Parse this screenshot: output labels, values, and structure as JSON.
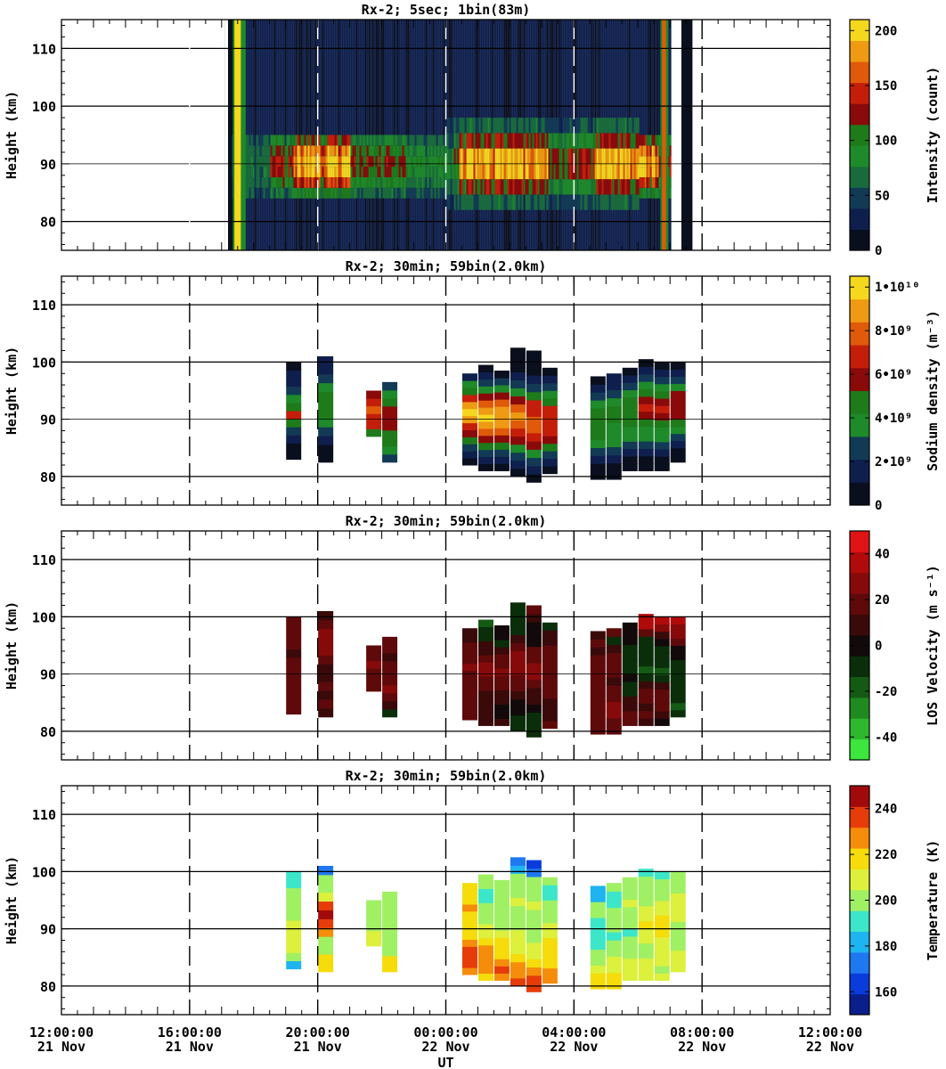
{
  "figure": {
    "xlabel": "UT",
    "x_ticks": [
      {
        "time": "12:00:00",
        "date": "21 Nov"
      },
      {
        "time": "16:00:00",
        "date": "21 Nov"
      },
      {
        "time": "20:00:00",
        "date": "21 Nov"
      },
      {
        "time": "00:00:00",
        "date": "22 Nov"
      },
      {
        "time": "04:00:00",
        "date": "22 Nov"
      },
      {
        "time": "08:00:00",
        "date": "22 Nov"
      },
      {
        "time": "12:00:00",
        "date": "22 Nov"
      }
    ]
  },
  "chart_data": [
    {
      "type": "heatmap",
      "title": "Rx-2;  5sec; 1bin(83m)",
      "ylabel": "Height (km)",
      "xlim_hours_from_start": [
        0,
        24
      ],
      "ylim": [
        75,
        115
      ],
      "y_ticks": [
        80,
        90,
        100,
        110
      ],
      "colorbar": {
        "label": "Intensity (count)",
        "ticks": [
          "0",
          "50",
          "100",
          "150",
          "200"
        ],
        "range": [
          0,
          210
        ],
        "colors": [
          "#0a0f1e",
          "#0f1f4d",
          "#123a55",
          "#1a6b3c",
          "#1e8a2a",
          "#1f7a1a",
          "#8a0a0a",
          "#c41e0a",
          "#e05a0a",
          "#ee9a12",
          "#f5d81e"
        ]
      },
      "data_gaps_hours": [
        [
          2.1,
          2.3
        ],
        [
          5.1,
          5.2
        ],
        [
          19.05,
          19.35
        ]
      ],
      "sodium_layer": {
        "peak_height_km": 90,
        "bottom_km": 82,
        "top_km": 98,
        "strong_periods_hours": [
          [
            7.2,
            9.0
          ],
          [
            12.4,
            15.2
          ],
          [
            16.6,
            18.6
          ]
        ]
      }
    },
    {
      "type": "heatmap",
      "title": "Rx-2; 30min; 59bin(2.0km)",
      "ylabel": "Height (km)",
      "xlim_hours_from_start": [
        0,
        24
      ],
      "ylim": [
        75,
        115
      ],
      "y_ticks": [
        80,
        90,
        100,
        110
      ],
      "colorbar": {
        "label": "Sodium density (m⁻³)",
        "ticks": [
          "0",
          "2•10⁹",
          "4•10⁹",
          "6•10⁹",
          "8•10⁹",
          "1•10¹⁰"
        ],
        "range": [
          0,
          10500000000.0
        ],
        "colors": [
          "#0a0f1e",
          "#0f1f4d",
          "#123a55",
          "#1e8a2a",
          "#1f7a1a",
          "#8a0a0a",
          "#c41e0a",
          "#e05a0a",
          "#ee9a12",
          "#f5d81e"
        ]
      },
      "profiles_hours": [
        7.25,
        8.25,
        9.75,
        10.25,
        12.75,
        13.25,
        13.75,
        14.25,
        14.75,
        15.25,
        16.75,
        17.25,
        17.75,
        18.25,
        18.75,
        19.25
      ],
      "field": "density"
    },
    {
      "type": "heatmap",
      "title": "Rx-2; 30min; 59bin(2.0km)",
      "ylabel": "Height (km)",
      "xlim_hours_from_start": [
        0,
        24
      ],
      "ylim": [
        75,
        115
      ],
      "y_ticks": [
        80,
        90,
        100,
        110
      ],
      "colorbar": {
        "label": "LOS Velocity (m s⁻¹)",
        "ticks": [
          "-40",
          "-20",
          "0",
          "20",
          "40"
        ],
        "range": [
          -50,
          50
        ],
        "colors": [
          "#3ce63c",
          "#2eb82e",
          "#1f8a1f",
          "#145a14",
          "#0a2e0a",
          "#120a0a",
          "#3a0a0a",
          "#5e0a0a",
          "#870a0a",
          "#b00a0a",
          "#e01414"
        ]
      },
      "field": "velocity"
    },
    {
      "type": "heatmap",
      "title": "Rx-2; 30min; 59bin(2.0km)",
      "ylabel": "Height (km)",
      "xlim_hours_from_start": [
        0,
        24
      ],
      "ylim": [
        75,
        115
      ],
      "y_ticks": [
        80,
        90,
        100,
        110
      ],
      "colorbar": {
        "label": "Temperature (K)",
        "ticks": [
          "160",
          "180",
          "200",
          "220",
          "240"
        ],
        "range": [
          150,
          250
        ],
        "colors": [
          "#0a1e8c",
          "#0a3cdc",
          "#1e78f0",
          "#1eb4f0",
          "#3ce6c8",
          "#a0f064",
          "#dcf03c",
          "#f5dc0a",
          "#f58c0a",
          "#e63c0a",
          "#a00a0a"
        ]
      },
      "field": "temperature"
    }
  ],
  "columns": [
    {
      "t": 7.25,
      "lo": 83,
      "hi": 100,
      "den": [
        0.5,
        1,
        2,
        3,
        5,
        6.5,
        4.5,
        3.5,
        3,
        2,
        1.5,
        1
      ],
      "vel": [
        14,
        18,
        16,
        14,
        20,
        22,
        16,
        12,
        20,
        18,
        14,
        16
      ],
      "tmp": [
        186,
        196,
        210,
        205,
        212,
        208,
        200,
        196,
        204,
        198,
        192,
        194
      ]
    },
    {
      "t": 8.25,
      "lo": 82.5,
      "hi": 101,
      "den": [
        0.5,
        1,
        2,
        3,
        4,
        4.5,
        5,
        4.5,
        4,
        3,
        2,
        1.5
      ],
      "vel": [
        10,
        14,
        12,
        16,
        8,
        10,
        18,
        26,
        30,
        28,
        14,
        12
      ],
      "tmp": [
        216,
        214,
        200,
        196,
        224,
        236,
        244,
        236,
        208,
        196,
        200,
        176
      ]
    },
    {
      "t": 9.75,
      "lo": 87,
      "hi": 95,
      "den": [
        5,
        6.5,
        7,
        7.5,
        7,
        6
      ],
      "vel": [
        16,
        20,
        18,
        24,
        22,
        20
      ],
      "tmp": [
        210,
        205,
        198,
        196,
        200,
        202
      ]
    },
    {
      "t": 10.25,
      "lo": 82.5,
      "hi": 96.5,
      "den": [
        3,
        4,
        4.5,
        5,
        5.5,
        6,
        6,
        5,
        4,
        3
      ],
      "vel": [
        -10,
        6,
        20,
        24,
        22,
        18,
        14,
        12,
        22,
        20
      ],
      "tmp": [
        218,
        214,
        200,
        196,
        198,
        200,
        202,
        196,
        198,
        200
      ]
    },
    {
      "t": 12.75,
      "lo": 82,
      "hi": 98,
      "den": [
        1,
        2,
        3,
        4.5,
        6,
        7,
        8.5,
        9.5,
        8.5,
        7,
        5,
        3.5,
        2
      ],
      "vel": [
        18,
        16,
        14,
        16,
        20,
        18,
        22,
        24,
        20,
        16,
        14,
        12,
        10
      ],
      "tmp": [
        228,
        236,
        238,
        232,
        228,
        222,
        218,
        214,
        220,
        224,
        218,
        214,
        222
      ]
    },
    {
      "t": 13.25,
      "lo": 81,
      "hi": 99.5,
      "den": [
        1,
        2,
        3,
        4.5,
        6,
        7.5,
        9,
        10,
        9,
        7.5,
        6,
        4,
        2.5,
        1.5,
        0.5
      ],
      "vel": [
        12,
        10,
        6,
        8,
        12,
        16,
        20,
        26,
        24,
        18,
        12,
        8,
        -10,
        -12,
        -14
      ],
      "tmp": [
        214,
        224,
        228,
        230,
        226,
        218,
        210,
        206,
        200,
        198,
        196,
        190,
        192,
        196,
        196
      ]
    },
    {
      "t": 13.75,
      "lo": 81,
      "hi": 98.5,
      "den": [
        1,
        2,
        3,
        4.5,
        6,
        7.5,
        8.5,
        9,
        8.5,
        7.5,
        6,
        4,
        2.5,
        1
      ],
      "vel": [
        6,
        4,
        2,
        6,
        10,
        14,
        20,
        24,
        20,
        14,
        8,
        -6,
        -4,
        -2
      ],
      "tmp": [
        230,
        232,
        226,
        222,
        218,
        214,
        210,
        204,
        200,
        196,
        198,
        202,
        200,
        196
      ]
    },
    {
      "t": 14.25,
      "lo": 80,
      "hi": 102.5,
      "den": [
        0.5,
        1.5,
        2.5,
        4,
        5.5,
        7,
        8,
        8.5,
        7.5,
        6,
        4,
        3,
        2,
        1,
        0.5,
        0.5
      ],
      "vel": [
        -6,
        -8,
        -4,
        2,
        8,
        14,
        22,
        28,
        30,
        26,
        18,
        8,
        -8,
        -6,
        -10,
        -8
      ],
      "tmp": [
        232,
        230,
        226,
        218,
        212,
        210,
        206,
        200,
        196,
        202,
        208,
        204,
        198,
        196,
        178,
        176
      ]
    },
    {
      "t": 14.75,
      "lo": 79,
      "hi": 102,
      "den": [
        0.5,
        1.5,
        2.5,
        4,
        5.5,
        7,
        7.5,
        7.5,
        7,
        6.5,
        5,
        3,
        2,
        1,
        0.5,
        0.5
      ],
      "vel": [
        -12,
        -10,
        -6,
        -2,
        6,
        12,
        18,
        26,
        28,
        22,
        14,
        4,
        2,
        -4,
        12,
        14
      ],
      "tmp": [
        240,
        232,
        226,
        218,
        212,
        208,
        204,
        198,
        196,
        200,
        206,
        204,
        198,
        196,
        172,
        166
      ]
    },
    {
      "t": 15.25,
      "lo": 80.5,
      "hi": 99,
      "den": [
        1,
        2,
        3,
        4.5,
        6,
        7,
        7,
        7,
        6.5,
        5,
        3.5,
        2.5,
        1.5,
        0.5
      ],
      "vel": [
        14,
        10,
        8,
        12,
        14,
        16,
        18,
        20,
        22,
        18,
        14,
        10,
        8,
        -12
      ],
      "tmp": [
        226,
        224,
        222,
        218,
        216,
        214,
        210,
        206,
        202,
        198,
        196,
        194,
        192,
        198
      ]
    },
    {
      "t": 16.75,
      "lo": 79.5,
      "hi": 97.5,
      "den": [
        0.5,
        1,
        2,
        3,
        4,
        4.5,
        5,
        5,
        4.5,
        4,
        3,
        2,
        1
      ],
      "vel": [
        16,
        14,
        20,
        18,
        16,
        14,
        18,
        22,
        20,
        14,
        12,
        16,
        12
      ],
      "tmp": [
        216,
        214,
        210,
        200,
        196,
        190,
        188,
        190,
        192,
        196,
        198,
        186,
        178
      ]
    },
    {
      "t": 17.25,
      "lo": 79.5,
      "hi": 98,
      "den": [
        0.5,
        1,
        2,
        3,
        3.5,
        3.5,
        4,
        4.5,
        4.5,
        4,
        3,
        2,
        1.5
      ],
      "vel": [
        16,
        18,
        26,
        24,
        20,
        16,
        12,
        14,
        18,
        16,
        12,
        -6,
        14
      ],
      "tmp": [
        218,
        216,
        212,
        206,
        200,
        196,
        190,
        196,
        200,
        196,
        188,
        192,
        198
      ]
    },
    {
      "t": 17.75,
      "lo": 81,
      "hi": 99,
      "den": [
        0.5,
        1,
        2,
        3,
        3.5,
        4,
        4.5,
        5,
        5,
        4.5,
        3.5,
        2.5,
        1.5,
        0.5
      ],
      "vel": [
        14,
        16,
        12,
        8,
        -6,
        -8,
        -4,
        -8,
        -10,
        -12,
        -6,
        -4,
        2,
        4
      ],
      "tmp": [
        212,
        210,
        206,
        202,
        198,
        196,
        194,
        196,
        200,
        204,
        206,
        204,
        200,
        196
      ]
    },
    {
      "t": 18.25,
      "lo": 81,
      "hi": 100.5,
      "den": [
        0.5,
        1,
        2,
        3,
        3.5,
        4,
        5,
        6,
        6.5,
        6,
        5,
        4,
        3,
        1.5,
        0.5
      ],
      "vel": [
        10,
        14,
        12,
        14,
        16,
        12,
        -12,
        -14,
        -10,
        -6,
        -12,
        -8,
        20,
        38,
        40
      ],
      "tmp": [
        210,
        208,
        206,
        204,
        202,
        206,
        212,
        216,
        212,
        208,
        204,
        200,
        196,
        200,
        190
      ]
    },
    {
      "t": 18.75,
      "lo": 81,
      "hi": 100,
      "den": [
        0.5,
        1,
        2,
        3,
        3.5,
        4,
        5,
        6,
        6.5,
        6,
        5,
        3.5,
        2.5,
        1.5,
        0.5
      ],
      "vel": [
        -4,
        6,
        16,
        18,
        14,
        8,
        -10,
        -14,
        -12,
        -10,
        -8,
        -4,
        10,
        30,
        36
      ],
      "tmp": [
        206,
        204,
        206,
        210,
        212,
        210,
        214,
        218,
        214,
        210,
        206,
        204,
        200,
        196,
        188
      ]
    },
    {
      "t": 19.25,
      "lo": 82.5,
      "hi": 100,
      "den": [
        0.5,
        1,
        2,
        3,
        4,
        5,
        5.5,
        6,
        6,
        5.5,
        4,
        3,
        2,
        1
      ],
      "vel": [
        -10,
        -14,
        -8,
        -6,
        -10,
        -12,
        -8,
        -6,
        -4,
        -2,
        20,
        24,
        30,
        36
      ],
      "tmp": [
        210,
        208,
        206,
        204,
        202,
        200,
        204,
        206,
        208,
        210,
        206,
        200,
        198,
        202
      ]
    }
  ]
}
